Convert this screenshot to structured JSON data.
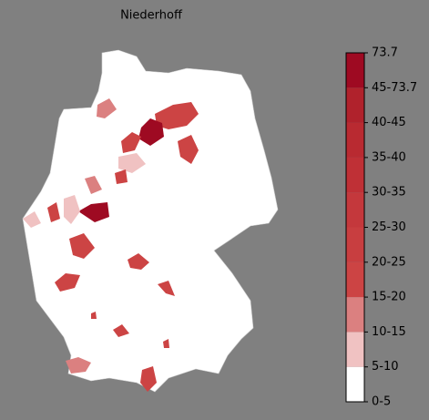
{
  "title": "Niederhoff",
  "legend": {
    "labels": [
      "0-5",
      "5-10",
      "10-15",
      "15-20",
      "20-25",
      "25-30",
      "30-35",
      "35-40",
      "40-45",
      "45-73.7",
      "73.7"
    ],
    "colors": [
      "#ffffff",
      "#f0c2c2",
      "#db8080",
      "#cc4444",
      "#c83e40",
      "#c4383c",
      "#bf3036",
      "#b92a31",
      "#b0222c",
      "#9e0a22"
    ]
  }
}
